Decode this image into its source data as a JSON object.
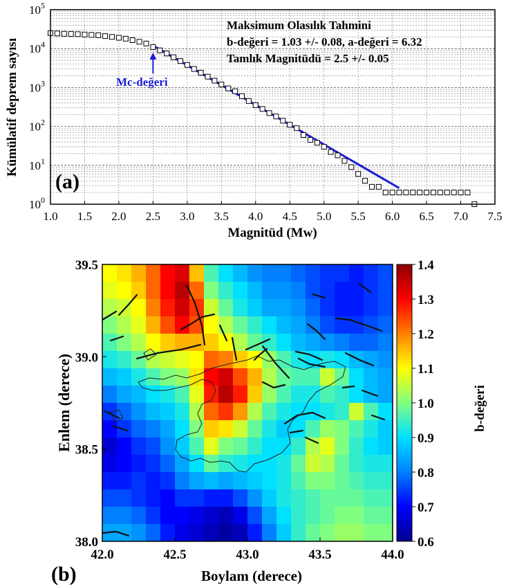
{
  "chart_data": [
    {
      "type": "scatter",
      "panel_label": "(a)",
      "xlabel": "Magnitüd (Mw)",
      "ylabel": "Kümülatif deprem sayısı",
      "xlim": [
        1.0,
        7.5
      ],
      "ylim_log10": [
        0,
        5
      ],
      "y_scale": "log",
      "x_ticks": [
        "1.0",
        "1.5",
        "2.0",
        "2.5",
        "3.0",
        "3.5",
        "4.0",
        "4.5",
        "5.0",
        "5.5",
        "6.0",
        "6.5",
        "7.0",
        "7.5"
      ],
      "y_ticks": [
        {
          "base": "10",
          "exp": "0"
        },
        {
          "base": "10",
          "exp": "1"
        },
        {
          "base": "10",
          "exp": "2"
        },
        {
          "base": "10",
          "exp": "3"
        },
        {
          "base": "10",
          "exp": "4"
        },
        {
          "base": "10",
          "exp": "5"
        }
      ],
      "grid": true,
      "annotations": {
        "title": "Maksimum Olasılık Tahmini",
        "b_line": "b-değeri = 1.03 +/- 0.08,  a-değeri = 6.32",
        "mc_line": "Tamlık Magnitüdü = 2.5 +/- 0.05",
        "mc_label": "Mc-değeri",
        "mc_value": 2.5
      },
      "fit_line": {
        "color": "#1b1bd6",
        "x": [
          2.5,
          6.1
        ],
        "y": [
          12000,
          2.6
        ]
      },
      "points": {
        "x": [
          1.0,
          1.1,
          1.2,
          1.3,
          1.4,
          1.5,
          1.6,
          1.7,
          1.8,
          1.9,
          2.0,
          2.1,
          2.2,
          2.3,
          2.4,
          2.5,
          2.6,
          2.7,
          2.8,
          2.9,
          3.0,
          3.1,
          3.2,
          3.3,
          3.4,
          3.5,
          3.6,
          3.7,
          3.8,
          3.9,
          4.0,
          4.1,
          4.2,
          4.3,
          4.4,
          4.5,
          4.6,
          4.7,
          4.8,
          4.9,
          5.0,
          5.1,
          5.2,
          5.3,
          5.4,
          5.5,
          5.6,
          5.7,
          5.8,
          5.9,
          6.0,
          6.1,
          6.2,
          6.3,
          6.4,
          6.5,
          6.6,
          6.7,
          6.8,
          6.9,
          7.0,
          7.1,
          7.2
        ],
        "y": [
          25000,
          24500,
          24000,
          23800,
          23500,
          23000,
          22500,
          22000,
          21000,
          20000,
          19000,
          18000,
          16500,
          15000,
          13500,
          11000,
          9000,
          7500,
          6000,
          4800,
          3800,
          3000,
          2400,
          1900,
          1500,
          1200,
          950,
          800,
          600,
          450,
          350,
          280,
          220,
          180,
          140,
          110,
          90,
          60,
          45,
          38,
          30,
          22,
          18,
          13,
          9,
          6,
          4,
          2.8,
          2.8,
          2,
          2,
          2,
          2,
          2,
          2,
          2,
          2,
          2,
          2,
          2,
          2,
          2,
          1
        ]
      }
    },
    {
      "type": "heatmap",
      "panel_label": "(b)",
      "xlabel": "Boylam (derece)",
      "ylabel": "Enlem (derece)",
      "xlim": [
        42.0,
        44.0
      ],
      "ylim": [
        38.0,
        39.5
      ],
      "x_ticks": [
        "42.0",
        "42.5",
        "43.0",
        "43.5",
        "44.0"
      ],
      "y_ticks": [
        "38.0",
        "38.5",
        "39.0",
        "39.5"
      ],
      "colorbar": {
        "label": "b-değeri",
        "range": [
          0.6,
          1.4
        ],
        "ticks": [
          "0.6",
          "0.7",
          "0.8",
          "0.9",
          "1.0",
          "1.1",
          "1.2",
          "1.3",
          "1.4"
        ],
        "colors": [
          "#00008b",
          "#0000ff",
          "#0080ff",
          "#00e0ff",
          "#80ff80",
          "#ffff00",
          "#ff8000",
          "#ff0000",
          "#8b0000"
        ]
      },
      "grid_values": [
        [
          1.1,
          1.12,
          1.16,
          1.22,
          1.3,
          1.33,
          1.15,
          0.96,
          0.9,
          0.86,
          0.82,
          0.8,
          0.8,
          0.78,
          0.76,
          0.74,
          0.74,
          0.72,
          0.74,
          0.76
        ],
        [
          1.08,
          1.1,
          1.14,
          1.22,
          1.3,
          1.36,
          1.22,
          1.0,
          0.94,
          0.9,
          0.86,
          0.82,
          0.82,
          0.8,
          0.76,
          0.74,
          0.72,
          0.72,
          0.74,
          0.76
        ],
        [
          1.04,
          1.06,
          1.1,
          1.2,
          1.28,
          1.34,
          1.26,
          1.06,
          0.98,
          0.92,
          0.88,
          0.84,
          0.84,
          0.82,
          0.78,
          0.74,
          0.72,
          0.72,
          0.74,
          0.76
        ],
        [
          1.0,
          1.04,
          1.08,
          1.16,
          1.24,
          1.3,
          1.24,
          1.1,
          1.04,
          0.98,
          0.94,
          0.9,
          0.86,
          0.84,
          0.8,
          0.76,
          0.74,
          0.74,
          0.76,
          0.78
        ],
        [
          0.96,
          1.0,
          1.04,
          1.1,
          1.14,
          1.16,
          1.16,
          1.14,
          1.1,
          1.04,
          0.98,
          0.94,
          0.9,
          0.86,
          0.84,
          0.82,
          0.8,
          0.78,
          0.78,
          0.8
        ],
        [
          0.92,
          0.94,
          0.98,
          1.04,
          1.06,
          1.08,
          1.1,
          1.22,
          1.2,
          1.14,
          1.1,
          1.02,
          0.96,
          0.92,
          0.9,
          0.92,
          0.9,
          0.86,
          0.84,
          0.82
        ],
        [
          0.86,
          0.88,
          0.92,
          0.96,
          1.0,
          1.02,
          1.12,
          1.3,
          1.34,
          1.24,
          1.16,
          1.04,
          0.98,
          0.96,
          0.96,
          1.06,
          0.98,
          0.9,
          0.86,
          0.84
        ],
        [
          0.8,
          0.84,
          0.86,
          0.9,
          0.92,
          0.96,
          1.08,
          1.28,
          1.36,
          1.28,
          1.14,
          1.02,
          0.96,
          0.92,
          0.92,
          0.96,
          0.94,
          0.9,
          0.86,
          0.84
        ],
        [
          0.74,
          0.78,
          0.82,
          0.86,
          0.88,
          0.92,
          1.04,
          1.22,
          1.26,
          1.18,
          1.04,
          0.96,
          0.92,
          0.9,
          0.9,
          0.92,
          0.94,
          1.06,
          0.96,
          0.9
        ],
        [
          0.7,
          0.74,
          0.78,
          0.8,
          0.84,
          0.9,
          1.0,
          1.14,
          1.12,
          1.06,
          0.98,
          0.92,
          0.88,
          0.9,
          0.96,
          1.02,
          1.0,
          0.96,
          0.92,
          0.88
        ],
        [
          0.66,
          0.7,
          0.74,
          0.76,
          0.82,
          0.88,
          0.96,
          1.08,
          1.0,
          0.98,
          0.94,
          0.9,
          0.9,
          0.94,
          1.04,
          1.08,
          1.0,
          0.94,
          0.9,
          0.88
        ],
        [
          0.68,
          0.7,
          0.72,
          0.74,
          0.78,
          0.84,
          0.9,
          0.98,
          0.94,
          0.92,
          0.9,
          0.9,
          0.92,
          0.98,
          1.06,
          1.04,
          0.98,
          0.94,
          0.92,
          0.92
        ],
        [
          0.72,
          0.72,
          0.74,
          0.72,
          0.74,
          0.8,
          0.84,
          0.86,
          0.84,
          0.86,
          0.88,
          0.9,
          0.92,
          0.96,
          1.0,
          1.0,
          0.98,
          0.96,
          0.94,
          0.94
        ],
        [
          0.76,
          0.76,
          0.74,
          0.72,
          0.7,
          0.74,
          0.74,
          0.72,
          0.72,
          0.76,
          0.82,
          0.88,
          0.92,
          0.94,
          0.96,
          0.98,
          0.98,
          0.98,
          0.96,
          0.96
        ],
        [
          0.8,
          0.8,
          0.78,
          0.74,
          0.7,
          0.7,
          0.68,
          0.66,
          0.64,
          0.68,
          0.76,
          0.84,
          0.9,
          0.94,
          0.96,
          0.98,
          1.0,
          1.0,
          0.98,
          0.98
        ],
        [
          0.84,
          0.84,
          0.82,
          0.78,
          0.72,
          0.68,
          0.66,
          0.64,
          0.62,
          0.64,
          0.72,
          0.8,
          0.88,
          0.94,
          0.98,
          1.0,
          1.02,
          1.02,
          1.0,
          1.0
        ]
      ]
    }
  ]
}
